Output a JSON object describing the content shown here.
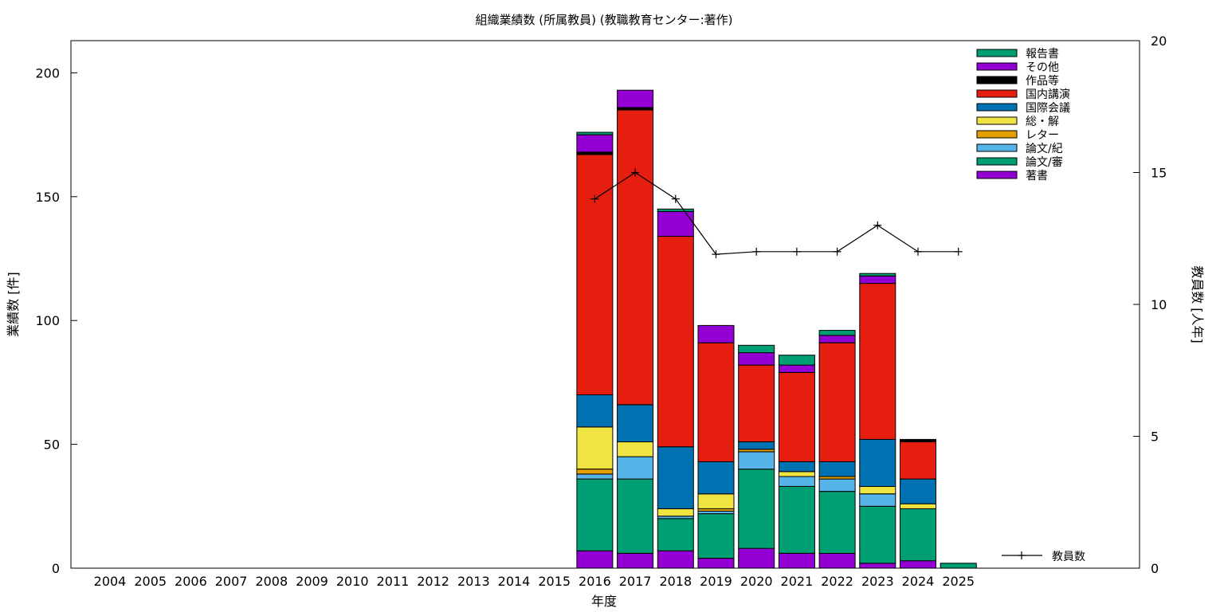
{
  "chart_data": {
    "type": "bar",
    "stacked": true,
    "title": "組織業績数 (所属教員) (教職教育センター:著作)",
    "xlabel": "年度",
    "ylabel": "業績数 [件]",
    "y2label": "教員数 [人年]",
    "ylim": [
      0,
      213
    ],
    "y2lim": [
      0,
      20
    ],
    "yticks": [
      0,
      50,
      100,
      150,
      200
    ],
    "y2ticks": [
      0,
      5,
      10,
      15,
      20
    ],
    "grid": false,
    "legend_position": "top-right",
    "categories": [
      "2004",
      "2005",
      "2006",
      "2007",
      "2008",
      "2009",
      "2010",
      "2011",
      "2012",
      "2013",
      "2014",
      "2015",
      "2016",
      "2017",
      "2018",
      "2019",
      "2020",
      "2021",
      "2022",
      "2023",
      "2024",
      "2025"
    ],
    "series": [
      {
        "name": "著書",
        "color": "#9400d3",
        "values": [
          0,
          0,
          0,
          0,
          0,
          0,
          0,
          0,
          0,
          0,
          0,
          0,
          7,
          6,
          7,
          4,
          8,
          6,
          6,
          2,
          3,
          0
        ]
      },
      {
        "name": "論文/審",
        "color": "#009e73",
        "values": [
          0,
          0,
          0,
          0,
          0,
          0,
          0,
          0,
          0,
          0,
          0,
          0,
          29,
          30,
          13,
          18,
          32,
          27,
          25,
          23,
          21,
          0
        ]
      },
      {
        "name": "論文/紀",
        "color": "#56b4e9",
        "values": [
          0,
          0,
          0,
          0,
          0,
          0,
          0,
          0,
          0,
          0,
          0,
          0,
          2,
          9,
          1,
          1,
          7,
          4,
          5,
          5,
          0,
          0
        ]
      },
      {
        "name": "レター",
        "color": "#e69f00",
        "values": [
          0,
          0,
          0,
          0,
          0,
          0,
          0,
          0,
          0,
          0,
          0,
          0,
          2,
          0,
          0,
          1,
          1,
          0,
          1,
          0,
          0,
          0
        ]
      },
      {
        "name": "総・解",
        "color": "#f0e442",
        "values": [
          0,
          0,
          0,
          0,
          0,
          0,
          0,
          0,
          0,
          0,
          0,
          0,
          17,
          6,
          3,
          6,
          0,
          2,
          0,
          3,
          2,
          0
        ]
      },
      {
        "name": "国際会議",
        "color": "#0072b2",
        "values": [
          0,
          0,
          0,
          0,
          0,
          0,
          0,
          0,
          0,
          0,
          0,
          0,
          13,
          15,
          25,
          13,
          3,
          4,
          6,
          19,
          10,
          0
        ]
      },
      {
        "name": "国内講演",
        "color": "#e51e10",
        "values": [
          0,
          0,
          0,
          0,
          0,
          0,
          0,
          0,
          0,
          0,
          0,
          0,
          97,
          119,
          85,
          48,
          31,
          36,
          48,
          63,
          15,
          0
        ]
      },
      {
        "name": "作品等",
        "color": "#000000",
        "values": [
          0,
          0,
          0,
          0,
          0,
          0,
          0,
          0,
          0,
          0,
          0,
          0,
          1,
          1,
          0,
          0,
          0,
          0,
          0,
          0,
          1,
          0
        ]
      },
      {
        "name": "その他",
        "color": "#9400d3",
        "values": [
          0,
          0,
          0,
          0,
          0,
          0,
          0,
          0,
          0,
          0,
          0,
          0,
          7,
          7,
          10,
          7,
          5,
          3,
          3,
          3,
          0,
          0
        ]
      },
      {
        "name": "報告書",
        "color": "#009e73",
        "values": [
          0,
          0,
          0,
          0,
          0,
          0,
          0,
          0,
          0,
          0,
          0,
          0,
          1,
          0,
          1,
          0,
          3,
          4,
          2,
          1,
          0,
          2
        ]
      }
    ],
    "line_series": {
      "name": "教員数",
      "color": "#000000",
      "axis": "y2",
      "categories": [
        "2016",
        "2017",
        "2018",
        "2019",
        "2020",
        "2021",
        "2022",
        "2023",
        "2024",
        "2025"
      ],
      "values": [
        14,
        15,
        14,
        11.9,
        12,
        12,
        12,
        13,
        12,
        12
      ]
    }
  }
}
